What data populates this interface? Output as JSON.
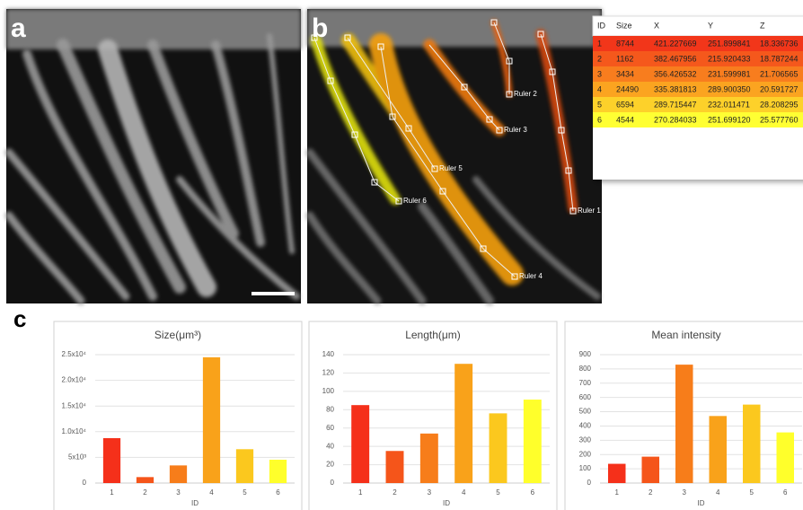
{
  "panels": [
    "a",
    "b",
    "c"
  ],
  "panel_b": {
    "rulers": [
      "Ruler 1",
      "Ruler 2",
      "Ruler 3",
      "Ruler 4",
      "Ruler 5",
      "Ruler 6"
    ]
  },
  "table": {
    "header": [
      "ID",
      "Size",
      "X",
      "Y",
      "Z"
    ],
    "row_colors": [
      "#f2361a",
      "#f5581c",
      "#f87d1e",
      "#fba420",
      "#fdd12a",
      "#ffff33"
    ],
    "rows": [
      [
        "1",
        "8744",
        "421.227669",
        "251.899841",
        "18.336736"
      ],
      [
        "2",
        "1162",
        "382.467956",
        "215.920433",
        "18.787244"
      ],
      [
        "3",
        "3434",
        "356.426532",
        "231.599981",
        "21.706565"
      ],
      [
        "4",
        "24490",
        "335.381813",
        "289.900350",
        "20.591727"
      ],
      [
        "5",
        "6594",
        "289.715447",
        "232.011471",
        "28.208295"
      ],
      [
        "6",
        "4544",
        "270.284033",
        "251.699120",
        "25.577760"
      ]
    ]
  },
  "chart_data": [
    {
      "type": "bar",
      "title": "Size(μm³)",
      "x_label": "ID",
      "categories": [
        "1",
        "2",
        "3",
        "4",
        "5",
        "6"
      ],
      "values": [
        8744,
        1162,
        3434,
        24490,
        6594,
        4544
      ],
      "colors": [
        "#f5301a",
        "#f5551a",
        "#f77d1a",
        "#f9a21a",
        "#fbc81e",
        "#ffff2b"
      ],
      "ylim": [
        0,
        25000
      ],
      "yticks": [
        0,
        {
          "value": 5000,
          "label": "5x10³"
        },
        {
          "value": 10000,
          "label": "1.0x10⁴"
        },
        {
          "value": 15000,
          "label": "1.5x10⁴"
        },
        {
          "value": 20000,
          "label": "2.0x10⁴"
        },
        {
          "value": 25000,
          "label": "2.5x10⁴"
        }
      ],
      "grid": true
    },
    {
      "type": "bar",
      "title": "Length(μm)",
      "x_label": "ID",
      "categories": [
        "1",
        "2",
        "3",
        "4",
        "5",
        "6"
      ],
      "values": [
        85,
        35,
        54,
        130,
        76,
        91
      ],
      "colors": [
        "#f5301a",
        "#f5551a",
        "#f77d1a",
        "#f9a21a",
        "#fbc81e",
        "#ffff2b"
      ],
      "ylim": [
        0,
        140
      ],
      "yticks": [
        0,
        20,
        40,
        60,
        80,
        100,
        120,
        140
      ],
      "grid": true
    },
    {
      "type": "bar",
      "title": "Mean intensity",
      "x_label": "ID",
      "categories": [
        "1",
        "2",
        "3",
        "4",
        "5",
        "6"
      ],
      "values": [
        135,
        185,
        830,
        470,
        550,
        355
      ],
      "colors": [
        "#f5301a",
        "#f5551a",
        "#f77d1a",
        "#f9a21a",
        "#fbc81e",
        "#ffff2b"
      ],
      "ylim": [
        0,
        900
      ],
      "yticks": [
        0,
        100,
        200,
        300,
        400,
        500,
        600,
        700,
        800,
        900
      ],
      "grid": true
    }
  ]
}
